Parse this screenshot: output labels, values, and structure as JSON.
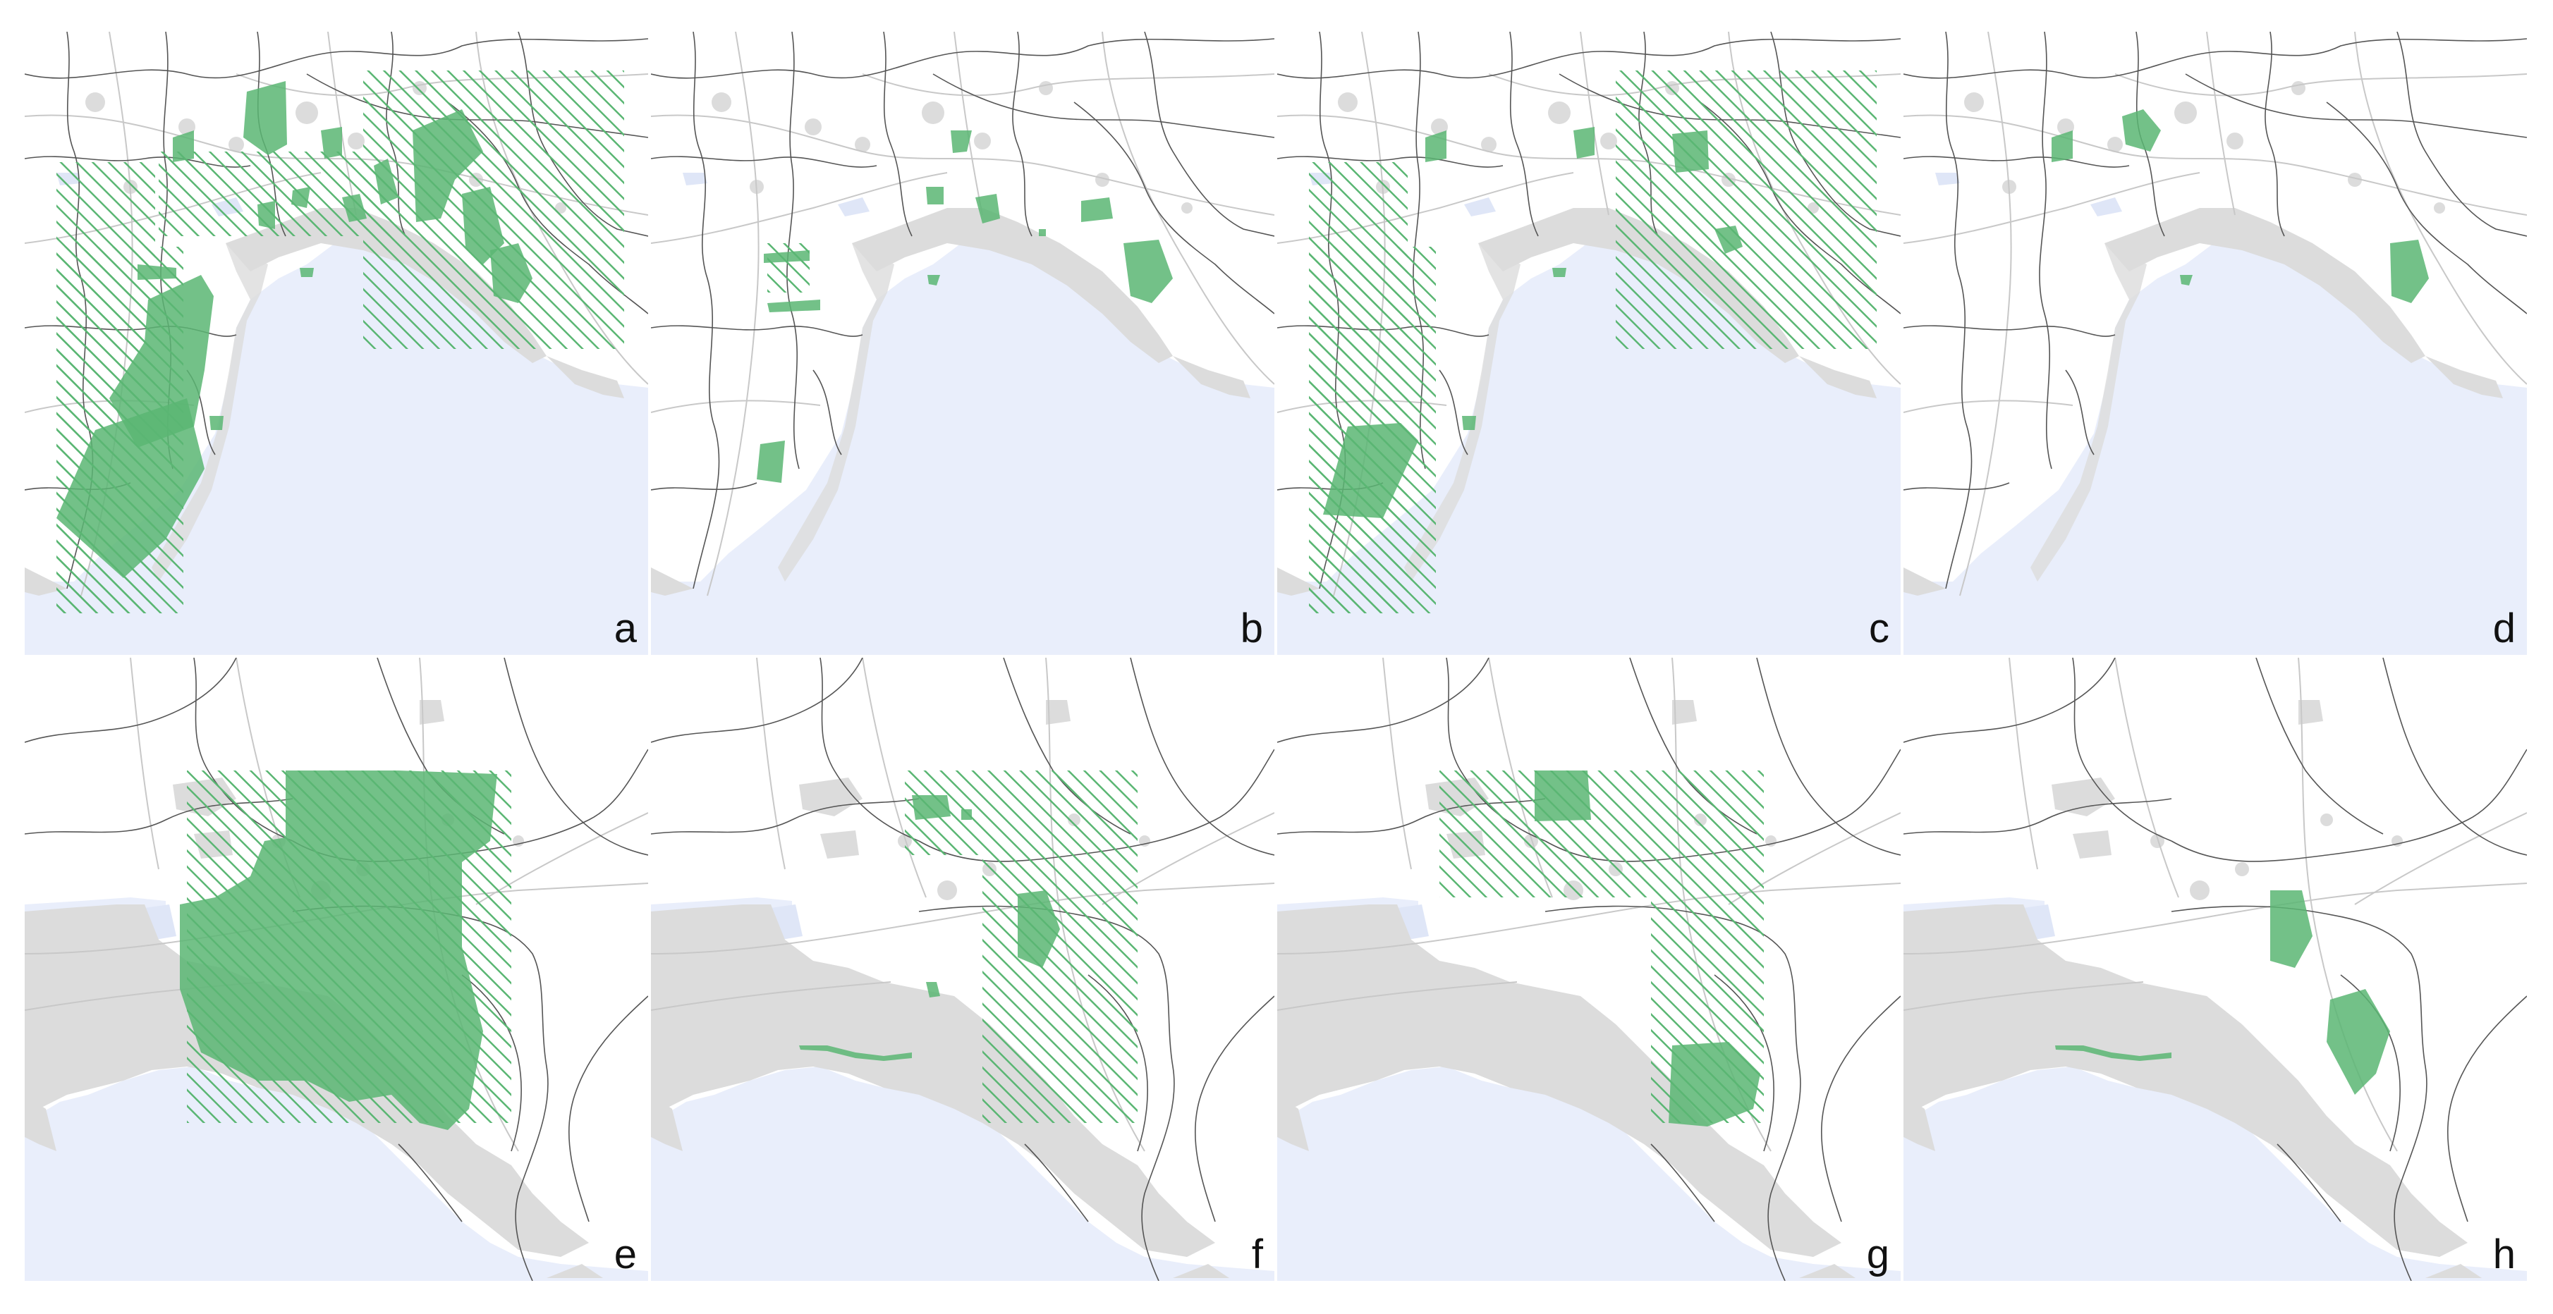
{
  "colors": {
    "sea": "#e9eefb",
    "land": "#ffffff",
    "urban": "#dcdcdc",
    "water": "#dfe6f7",
    "boundary": "#555555",
    "road": "#c8c8c8",
    "green": "#5ab673",
    "hatch": "#5ab673",
    "label": "#111111"
  },
  "panels": [
    {
      "label": "a",
      "view": "regional"
    },
    {
      "label": "b",
      "view": "regional"
    },
    {
      "label": "c",
      "view": "regional"
    },
    {
      "label": "d",
      "view": "regional"
    },
    {
      "label": "e",
      "view": "zoom"
    },
    {
      "label": "f",
      "view": "zoom"
    },
    {
      "label": "g",
      "view": "zoom"
    },
    {
      "label": "h",
      "view": "zoom"
    }
  ]
}
